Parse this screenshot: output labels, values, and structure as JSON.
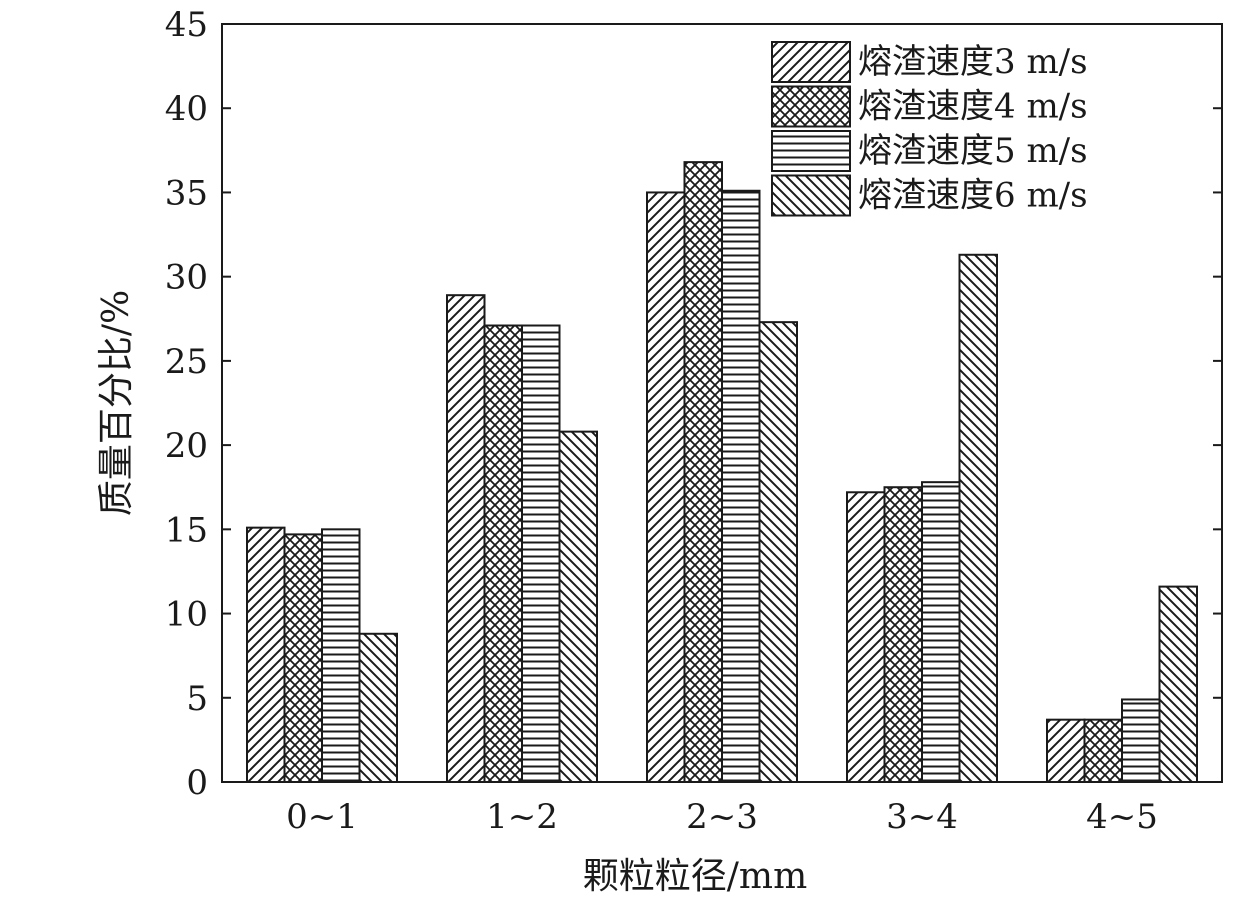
{
  "chart_data": {
    "type": "bar",
    "title": "",
    "xlabel": "颗粒粒径/mm",
    "ylabel": "质量百分比/%",
    "ylim": [
      0,
      45
    ],
    "yticks": [
      "0",
      "5",
      "10",
      "15",
      "20",
      "25",
      "30",
      "35",
      "40",
      "45"
    ],
    "categories": [
      "0~1",
      "1~2",
      "2~3",
      "3~4",
      "4~5"
    ],
    "legend_position": "top-right",
    "grid": false,
    "series": [
      {
        "name": "熔渣速度3 m/s",
        "pattern": "diagonal-up",
        "values": [
          15.1,
          28.9,
          35.0,
          17.2,
          3.7
        ]
      },
      {
        "name": "熔渣速度4 m/s",
        "pattern": "crosshatch",
        "values": [
          14.7,
          27.1,
          36.8,
          17.5,
          3.7
        ]
      },
      {
        "name": "熔渣速度5 m/s",
        "pattern": "horizontal",
        "values": [
          15.0,
          27.1,
          35.1,
          17.8,
          4.9
        ]
      },
      {
        "name": "熔渣速度6 m/s",
        "pattern": "diagonal-down",
        "values": [
          8.8,
          20.8,
          27.3,
          31.3,
          11.6
        ]
      }
    ],
    "colors": {
      "stroke": "#1a1a1a",
      "background": "#ffffff"
    }
  }
}
